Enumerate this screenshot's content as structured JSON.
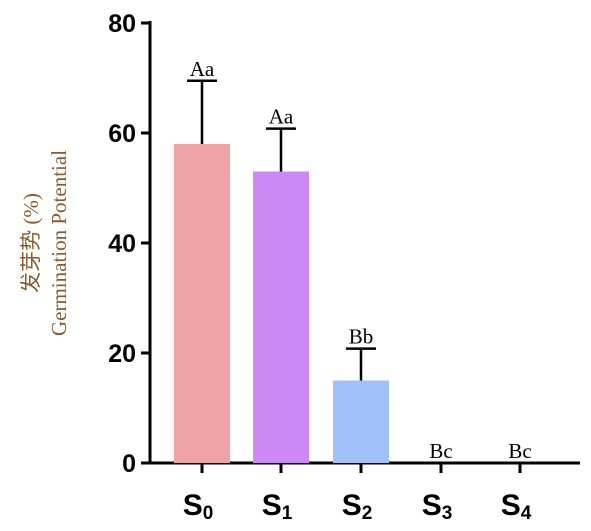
{
  "chart_data": {
    "type": "bar",
    "categories": [
      {
        "base": "S",
        "sub": "0"
      },
      {
        "base": "S",
        "sub": "1"
      },
      {
        "base": "S",
        "sub": "2"
      },
      {
        "base": "S",
        "sub": "3"
      },
      {
        "base": "S",
        "sub": "4"
      }
    ],
    "values": [
      58,
      53,
      15,
      0,
      0
    ],
    "errors": [
      11.5,
      7.8,
      5.8,
      0,
      0
    ],
    "significance": [
      "Aa",
      "Aa",
      "Bb",
      "Bc",
      "Bc"
    ],
    "colors": [
      "#f0a3a6",
      "#cc88f4",
      "#9fc0f8",
      "#ffffff",
      "#ffffff"
    ],
    "ylabel_lines": [
      "发芽势 (%)",
      "Germination Potential"
    ],
    "ylabel_color": "#8a5a2a",
    "ylim": [
      0,
      80
    ],
    "yticks": [
      0,
      20,
      40,
      60,
      80
    ],
    "legend": "none",
    "grid": false
  }
}
